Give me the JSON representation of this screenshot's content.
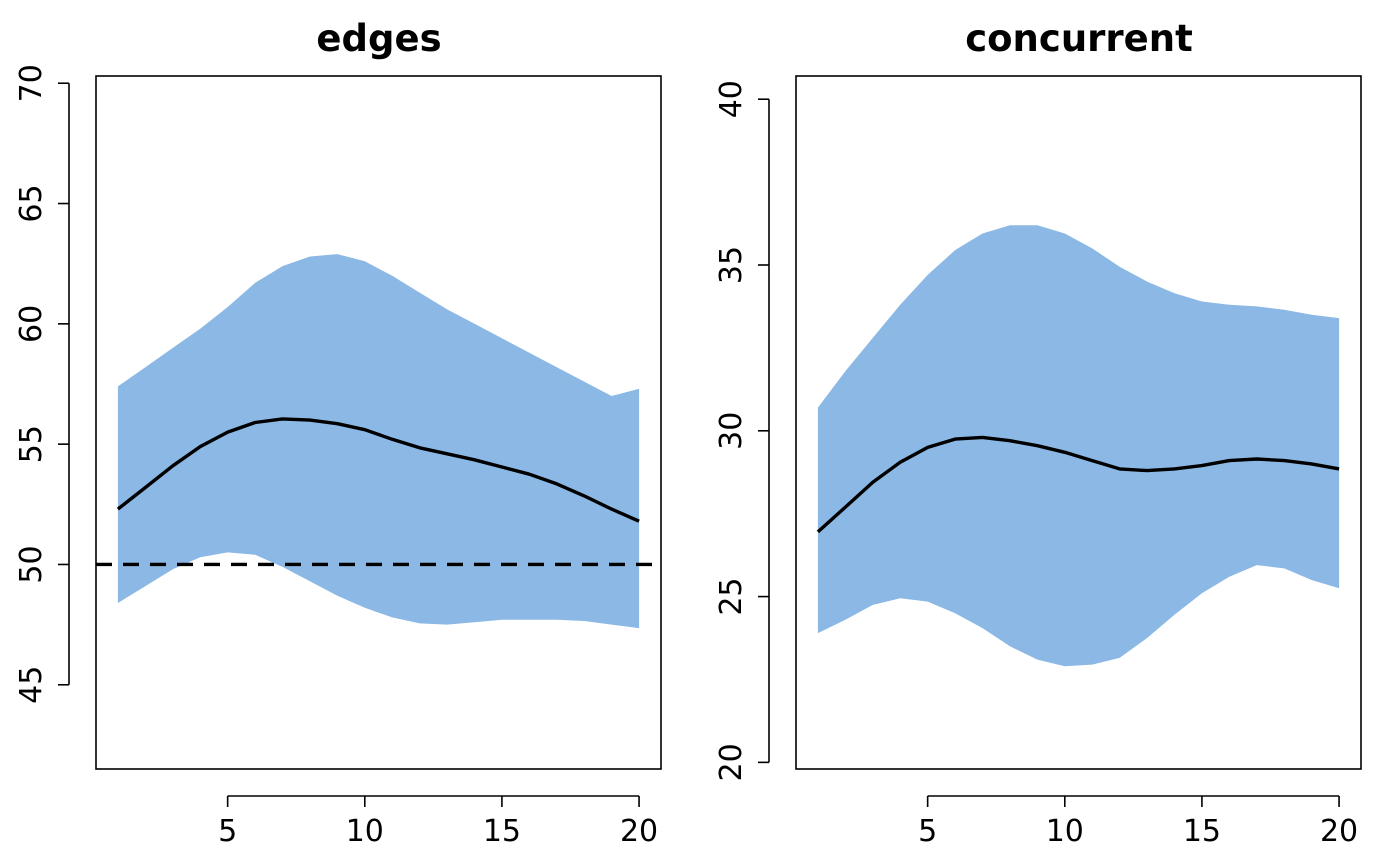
{
  "colors": {
    "band": "#8BB8E5",
    "line": "#000000",
    "background": "#FFFFFF"
  },
  "chart_data": [
    {
      "type": "area",
      "title": "edges",
      "xlabel": "",
      "ylabel": "",
      "xlim": [
        0.2,
        20.8
      ],
      "ylim": [
        41.5,
        70.3
      ],
      "xticks": [
        5,
        10,
        15,
        20
      ],
      "yticks": [
        45,
        50,
        55,
        60,
        65,
        70
      ],
      "grid": false,
      "legend": "none",
      "x": [
        1,
        2,
        3,
        4,
        5,
        6,
        7,
        8,
        9,
        10,
        11,
        12,
        13,
        14,
        15,
        16,
        17,
        18,
        19,
        20
      ],
      "band_upper": [
        57.4,
        58.2,
        59.0,
        59.8,
        60.7,
        61.7,
        62.4,
        62.8,
        62.9,
        62.6,
        62.0,
        61.3,
        60.6,
        60.0,
        59.4,
        58.8,
        58.2,
        57.6,
        57.0,
        57.3
      ],
      "band_lower": [
        48.4,
        49.1,
        49.8,
        50.3,
        50.5,
        50.4,
        49.9,
        49.3,
        48.7,
        48.2,
        47.8,
        47.55,
        47.5,
        47.6,
        47.7,
        47.7,
        47.7,
        47.65,
        47.5,
        47.35
      ],
      "median": [
        52.3,
        53.2,
        54.1,
        54.9,
        55.5,
        55.9,
        56.05,
        56.0,
        55.85,
        55.6,
        55.2,
        54.85,
        54.6,
        54.35,
        54.05,
        53.75,
        53.35,
        52.85,
        52.3,
        51.8
      ],
      "target": 50
    },
    {
      "type": "area",
      "title": "concurrent",
      "xlabel": "",
      "ylabel": "",
      "xlim": [
        0.2,
        20.8
      ],
      "ylim": [
        19.8,
        40.7
      ],
      "xticks": [
        5,
        10,
        15,
        20
      ],
      "yticks": [
        20,
        25,
        30,
        35,
        40
      ],
      "grid": false,
      "legend": "none",
      "x": [
        1,
        2,
        3,
        4,
        5,
        6,
        7,
        8,
        9,
        10,
        11,
        12,
        13,
        14,
        15,
        16,
        17,
        18,
        19,
        20
      ],
      "band_upper": [
        30.7,
        31.8,
        32.8,
        33.8,
        34.7,
        35.45,
        35.95,
        36.2,
        36.2,
        35.95,
        35.5,
        34.95,
        34.5,
        34.15,
        33.9,
        33.8,
        33.75,
        33.65,
        33.5,
        33.4
      ],
      "band_lower": [
        23.9,
        24.3,
        24.75,
        24.95,
        24.85,
        24.5,
        24.05,
        23.5,
        23.1,
        22.9,
        22.95,
        23.15,
        23.75,
        24.45,
        25.1,
        25.6,
        25.95,
        25.85,
        25.5,
        25.25
      ],
      "median": [
        26.95,
        27.7,
        28.45,
        29.05,
        29.5,
        29.75,
        29.8,
        29.7,
        29.55,
        29.35,
        29.1,
        28.85,
        28.8,
        28.85,
        28.95,
        29.1,
        29.15,
        29.1,
        29.0,
        28.85
      ]
    }
  ]
}
